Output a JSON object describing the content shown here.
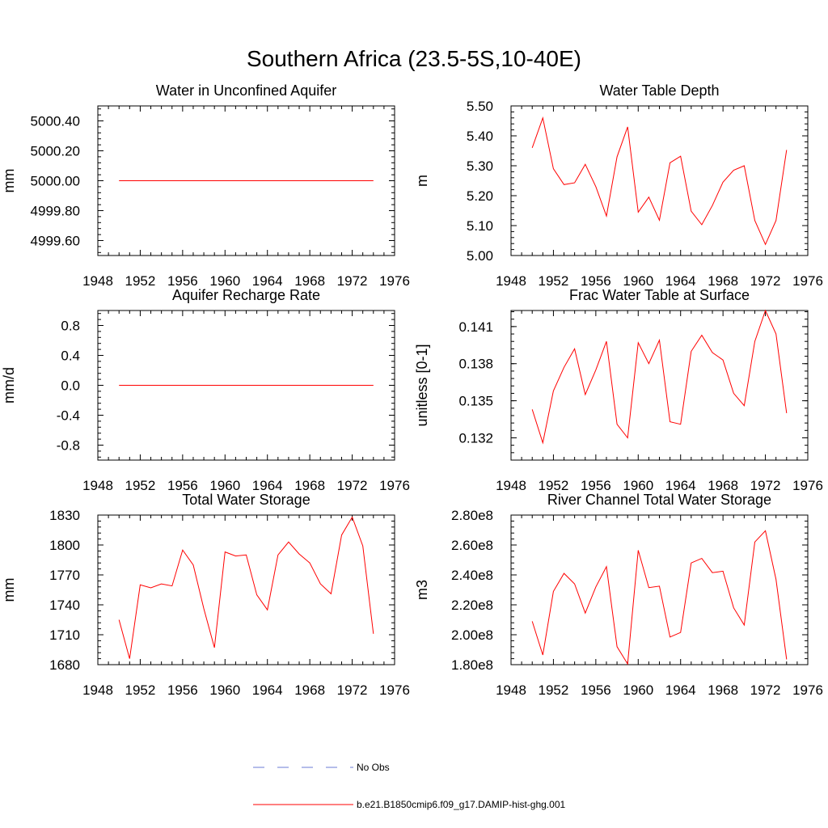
{
  "figure": {
    "title": "Southern Africa (23.5-5S,10-40E)",
    "series_color": "#ff0000",
    "obs_color": "#6b7bd6"
  },
  "legend": {
    "obs_label": "No Obs",
    "model_label": "b.e21.B1850cmip6.f09_g17.DAMIP-hist-ghg.001"
  },
  "chart_data": [
    {
      "type": "line",
      "title": "Water in Unconfined Aquifer",
      "ylabel": "mm",
      "xlim": [
        1948,
        1976
      ],
      "ylim": [
        4999.5,
        5000.5
      ],
      "xticks": [
        "1948",
        "1952",
        "1956",
        "1960",
        "1964",
        "1968",
        "1972",
        "1976"
      ],
      "yticks": [
        {
          "v": 4999.6,
          "label": "4999.60"
        },
        {
          "v": 4999.8,
          "label": "4999.80"
        },
        {
          "v": 5000.0,
          "label": "5000.00"
        },
        {
          "v": 5000.2,
          "label": "5000.20"
        },
        {
          "v": 5000.4,
          "label": "5000.40"
        }
      ],
      "x": [
        1950,
        1951,
        1952,
        1953,
        1954,
        1955,
        1956,
        1957,
        1958,
        1959,
        1960,
        1961,
        1962,
        1963,
        1964,
        1965,
        1966,
        1967,
        1968,
        1969,
        1970,
        1971,
        1972,
        1973,
        1974
      ],
      "values": [
        5000,
        5000,
        5000,
        5000,
        5000,
        5000,
        5000,
        5000,
        5000,
        5000,
        5000,
        5000,
        5000,
        5000,
        5000,
        5000,
        5000,
        5000,
        5000,
        5000,
        5000,
        5000,
        5000,
        5000,
        5000
      ]
    },
    {
      "type": "line",
      "title": "Water Table Depth",
      "ylabel": "m",
      "xlim": [
        1948,
        1976
      ],
      "ylim": [
        5.0,
        5.5
      ],
      "xticks": [
        "1948",
        "1952",
        "1956",
        "1960",
        "1964",
        "1968",
        "1972",
        "1976"
      ],
      "yticks": [
        {
          "v": 5.0,
          "label": "5.00"
        },
        {
          "v": 5.1,
          "label": "5.10"
        },
        {
          "v": 5.2,
          "label": "5.20"
        },
        {
          "v": 5.3,
          "label": "5.30"
        },
        {
          "v": 5.4,
          "label": "5.40"
        },
        {
          "v": 5.5,
          "label": "5.50"
        }
      ],
      "x": [
        1950,
        1951,
        1952,
        1953,
        1954,
        1955,
        1956,
        1957,
        1958,
        1959,
        1960,
        1961,
        1962,
        1963,
        1964,
        1965,
        1966,
        1967,
        1968,
        1969,
        1970,
        1971,
        1972,
        1973,
        1974
      ],
      "values": [
        5.36,
        5.46,
        5.29,
        5.237,
        5.243,
        5.305,
        5.23,
        5.132,
        5.33,
        5.43,
        5.145,
        5.195,
        5.118,
        5.31,
        5.332,
        5.148,
        5.103,
        5.167,
        5.245,
        5.285,
        5.3,
        5.117,
        5.037,
        5.117,
        5.353
      ]
    },
    {
      "type": "line",
      "title": "Aquifer Recharge Rate",
      "ylabel": "mm/d",
      "xlim": [
        1948,
        1976
      ],
      "ylim": [
        -1.0,
        1.0
      ],
      "xticks": [
        "1948",
        "1952",
        "1956",
        "1960",
        "1964",
        "1968",
        "1972",
        "1976"
      ],
      "yticks": [
        {
          "v": -0.8,
          "label": "-0.8"
        },
        {
          "v": -0.4,
          "label": "-0.4"
        },
        {
          "v": 0.0,
          "label": "0.0"
        },
        {
          "v": 0.4,
          "label": "0.4"
        },
        {
          "v": 0.8,
          "label": "0.8"
        }
      ],
      "x": [
        1950,
        1951,
        1952,
        1953,
        1954,
        1955,
        1956,
        1957,
        1958,
        1959,
        1960,
        1961,
        1962,
        1963,
        1964,
        1965,
        1966,
        1967,
        1968,
        1969,
        1970,
        1971,
        1972,
        1973,
        1974
      ],
      "values": [
        0,
        0,
        0,
        0,
        0,
        0,
        0,
        0,
        0,
        0,
        0,
        0,
        0,
        0,
        0,
        0,
        0,
        0,
        0,
        0,
        0,
        0,
        0,
        0,
        0
      ]
    },
    {
      "type": "line",
      "title": "Frac Water Table at Surface",
      "ylabel": "unitless [0-1]",
      "xlim": [
        1948,
        1976
      ],
      "ylim": [
        0.1302,
        0.1423
      ],
      "xticks": [
        "1948",
        "1952",
        "1956",
        "1960",
        "1964",
        "1968",
        "1972",
        "1976"
      ],
      "yticks": [
        {
          "v": 0.132,
          "label": "0.132"
        },
        {
          "v": 0.135,
          "label": "0.135"
        },
        {
          "v": 0.138,
          "label": "0.138"
        },
        {
          "v": 0.141,
          "label": "0.141"
        }
      ],
      "x": [
        1950,
        1951,
        1952,
        1953,
        1954,
        1955,
        1956,
        1957,
        1958,
        1959,
        1960,
        1961,
        1962,
        1963,
        1964,
        1965,
        1966,
        1967,
        1968,
        1969,
        1970,
        1971,
        1972,
        1973,
        1974
      ],
      "values": [
        0.1343,
        0.1316,
        0.1358,
        0.1377,
        0.1392,
        0.1355,
        0.1375,
        0.1398,
        0.1331,
        0.132,
        0.1397,
        0.138,
        0.1399,
        0.1333,
        0.1331,
        0.139,
        0.1403,
        0.1389,
        0.1383,
        0.1356,
        0.1346,
        0.1398,
        0.1423,
        0.1404,
        0.134
      ]
    },
    {
      "type": "line",
      "title": "Total Water Storage",
      "ylabel": "mm",
      "xlim": [
        1948,
        1976
      ],
      "ylim": [
        1680,
        1830
      ],
      "xticks": [
        "1948",
        "1952",
        "1956",
        "1960",
        "1964",
        "1968",
        "1972",
        "1976"
      ],
      "yticks": [
        {
          "v": 1680,
          "label": "1680"
        },
        {
          "v": 1710,
          "label": "1710"
        },
        {
          "v": 1740,
          "label": "1740"
        },
        {
          "v": 1770,
          "label": "1770"
        },
        {
          "v": 1800,
          "label": "1800"
        },
        {
          "v": 1830,
          "label": "1830"
        }
      ],
      "x": [
        1950,
        1951,
        1952,
        1953,
        1954,
        1955,
        1956,
        1957,
        1958,
        1959,
        1960,
        1961,
        1962,
        1963,
        1964,
        1965,
        1966,
        1967,
        1968,
        1969,
        1970,
        1971,
        1972,
        1973,
        1974
      ],
      "values": [
        1725,
        1686,
        1760,
        1757,
        1761,
        1759,
        1795,
        1780,
        1736,
        1697,
        1793,
        1789,
        1790,
        1750,
        1735,
        1790,
        1803,
        1791,
        1782,
        1761,
        1751,
        1810,
        1828,
        1799,
        1711
      ]
    },
    {
      "type": "line",
      "title": "River Channel Total Water Storage",
      "ylabel": "m3",
      "xlim": [
        1948,
        1976
      ],
      "ylim": [
        180000000,
        280000000
      ],
      "xticks": [
        "1948",
        "1952",
        "1956",
        "1960",
        "1964",
        "1968",
        "1972",
        "1976"
      ],
      "yticks": [
        {
          "v": 180000000,
          "label": "1.80e8"
        },
        {
          "v": 200000000,
          "label": "2.00e8"
        },
        {
          "v": 220000000,
          "label": "2.20e8"
        },
        {
          "v": 240000000,
          "label": "2.40e8"
        },
        {
          "v": 260000000,
          "label": "2.60e8"
        },
        {
          "v": 280000000,
          "label": "2.80e8"
        }
      ],
      "x": [
        1950,
        1951,
        1952,
        1953,
        1954,
        1955,
        1956,
        1957,
        1958,
        1959,
        1960,
        1961,
        1962,
        1963,
        1964,
        1965,
        1966,
        1967,
        1968,
        1969,
        1970,
        1971,
        1972,
        1973,
        1974
      ],
      "values": [
        209000000,
        186500000,
        229000000,
        241000000,
        234000000,
        214500000,
        232000000,
        245500000,
        192000000,
        180500000,
        256500000,
        231500000,
        232500000,
        198500000,
        201500000,
        248000000,
        251000000,
        241500000,
        242500000,
        218000000,
        206500000,
        262000000,
        269500000,
        237000000,
        183500000
      ]
    }
  ]
}
